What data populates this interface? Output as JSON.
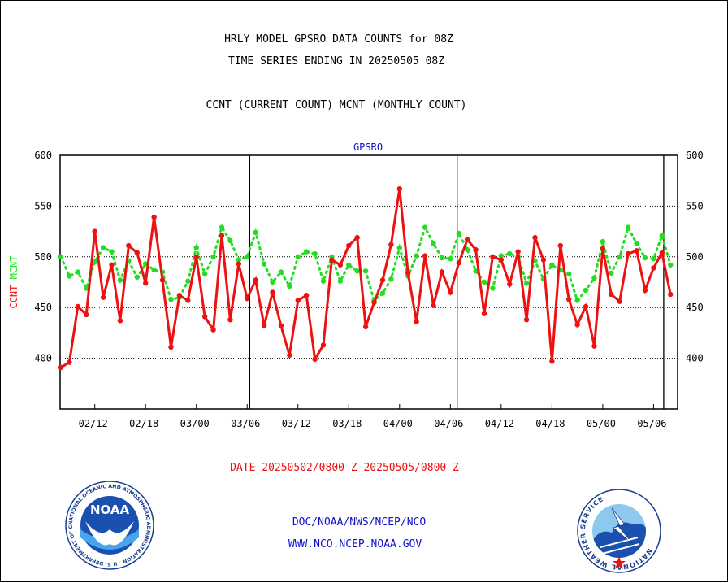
{
  "chart_data": {
    "type": "line",
    "title_lines": [
      "HRLY MODEL GPSRO DATA COUNTS for 08Z",
      "TIME SERIES ENDING IN 20250505 08Z"
    ],
    "subtitle": "CCNT (CURRENT COUNT) MCNT (MONTHLY COUNT)",
    "panel_label": "GPSRO",
    "ylabel_current": "CCNT",
    "ylabel_monthly": "MCNT",
    "ylim": [
      350,
      600
    ],
    "yticks": [
      400,
      450,
      500,
      550,
      600
    ],
    "xticks": [
      "02/12",
      "02/18",
      "03/00",
      "03/06",
      "03/12",
      "03/18",
      "04/00",
      "04/06",
      "04/12",
      "04/18",
      "05/00",
      "05/06"
    ],
    "date_range": "DATE 20250502/0800 Z-20250505/0800 Z",
    "series": [
      {
        "name": "CCNT",
        "color": "#ee1111",
        "values": [
          391,
          396,
          451,
          443,
          525,
          460,
          492,
          437,
          511,
          504,
          474,
          539,
          477,
          411,
          462,
          457,
          500,
          441,
          428,
          521,
          438,
          493,
          459,
          477,
          432,
          465,
          432,
          403,
          457,
          462,
          399,
          413,
          497,
          492,
          511,
          519,
          431,
          455,
          477,
          512,
          567,
          484,
          436,
          501,
          452,
          485,
          465,
          494,
          517,
          507,
          444,
          500,
          497,
          473,
          505,
          438,
          519,
          497,
          397,
          511,
          458,
          433,
          451,
          412,
          508,
          463,
          456,
          503,
          506,
          467,
          489,
          504,
          463
        ]
      },
      {
        "name": "MCNT",
        "color": "#22dd22",
        "values": [
          500,
          481,
          485,
          469,
          495,
          509,
          505,
          477,
          496,
          480,
          493,
          487,
          485,
          458,
          460,
          476,
          509,
          483,
          500,
          529,
          516,
          497,
          500,
          524,
          493,
          475,
          485,
          471,
          500,
          505,
          503,
          476,
          500,
          476,
          492,
          486,
          486,
          457,
          464,
          478,
          509,
          481,
          501,
          529,
          513,
          499,
          498,
          523,
          507,
          486,
          475,
          469,
          501,
          503,
          500,
          474,
          496,
          478,
          492,
          487,
          483,
          457,
          467,
          479,
          515,
          484,
          500,
          529,
          513,
          499,
          498,
          521,
          492
        ]
      }
    ],
    "footer_links": [
      "DOC/NOAA/NWS/NCEP/NCO",
      "WWW.NCO.NCEP.NOAA.GOV"
    ]
  },
  "logos": {
    "noaa": {
      "icon": "noaa-seal-icon",
      "ring_text": "NATIONAL OCEANIC AND ATMOSPHERIC ADMINISTRATION · U.S. DEPARTMENT OF COMMERCE",
      "center_text": "NOAA"
    },
    "nws": {
      "icon": "nws-seal-icon",
      "ring_text": "NATIONAL WEATHER SERVICE"
    }
  },
  "colors": {
    "current": "#ee1111",
    "monthly": "#22dd22",
    "title": "#000000",
    "panel_label": "#1111cc",
    "date": "#ee1111",
    "links": "#1111cc"
  }
}
